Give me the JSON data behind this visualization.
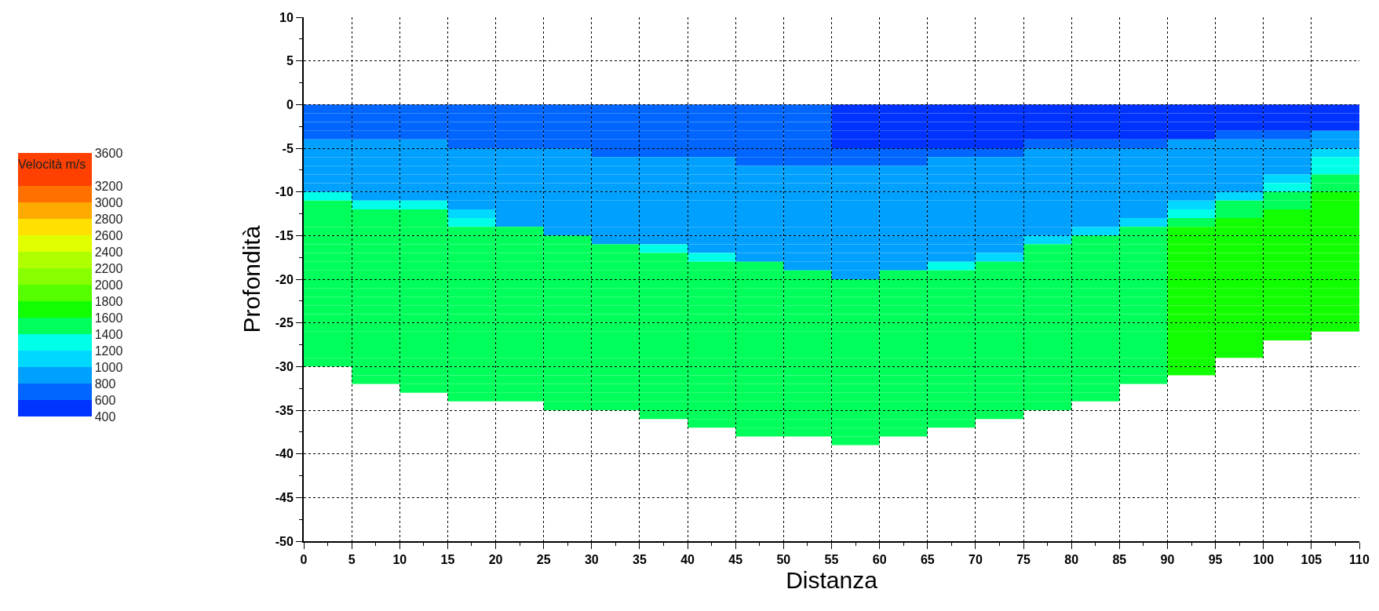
{
  "chart_data": {
    "type": "heatmap",
    "xlabel": "Distanza",
    "ylabel": "Profondità",
    "clabel": "Velocità m/s",
    "x": [
      2.5,
      7.5,
      12.5,
      17.5,
      22.5,
      27.5,
      32.5,
      37.5,
      42.5,
      47.5,
      52.5,
      57.5,
      62.5,
      67.5,
      72.5,
      77.5,
      82.5,
      87.5,
      92.5,
      97.5,
      102.5,
      107.5
    ],
    "y": [
      -0.5,
      -1.5,
      -2.5,
      -3.5,
      -4.5,
      -5.5,
      -6.5,
      -7.5,
      -8.5,
      -9.5,
      -10.5,
      -11.5,
      -12.5,
      -13.5,
      -14.5,
      -15.5,
      -16.5,
      -17.5,
      -18.5,
      -19.5,
      -20.5,
      -21.5,
      -22.5,
      -23.5,
      -24.5,
      -25.5,
      -26.5,
      -27.5,
      -28.5,
      -29.5,
      -30.5,
      -31.5,
      -32.5,
      -33.5,
      -34.5,
      -35.5,
      -36.5,
      -37.5,
      -38.5
    ],
    "cells": [
      [
        700,
        700,
        700,
        700,
        700,
        700,
        700,
        700,
        700,
        700,
        700,
        500,
        500,
        500,
        500,
        500,
        500,
        500,
        500,
        500,
        500,
        500
      ],
      [
        700,
        700,
        700,
        700,
        700,
        700,
        700,
        700,
        700,
        700,
        700,
        500,
        500,
        500,
        500,
        500,
        500,
        500,
        500,
        500,
        500,
        500
      ],
      [
        700,
        700,
        700,
        700,
        700,
        700,
        700,
        700,
        700,
        700,
        700,
        500,
        500,
        500,
        500,
        500,
        500,
        500,
        500,
        500,
        500,
        500
      ],
      [
        700,
        700,
        700,
        700,
        700,
        700,
        700,
        700,
        700,
        700,
        700,
        500,
        500,
        500,
        500,
        500,
        500,
        500,
        500,
        700,
        700,
        900
      ],
      [
        900,
        900,
        900,
        700,
        700,
        700,
        700,
        700,
        700,
        700,
        700,
        500,
        500,
        500,
        500,
        700,
        700,
        700,
        900,
        900,
        900,
        900
      ],
      [
        900,
        900,
        900,
        900,
        900,
        900,
        700,
        700,
        700,
        700,
        700,
        700,
        700,
        700,
        700,
        900,
        900,
        900,
        900,
        900,
        900,
        1100
      ],
      [
        900,
        900,
        900,
        900,
        900,
        900,
        900,
        900,
        900,
        700,
        700,
        700,
        700,
        900,
        900,
        900,
        900,
        900,
        900,
        900,
        900,
        1300
      ],
      [
        900,
        900,
        900,
        900,
        900,
        900,
        900,
        900,
        900,
        900,
        900,
        900,
        900,
        900,
        900,
        900,
        900,
        900,
        900,
        900,
        900,
        1300
      ],
      [
        900,
        900,
        900,
        900,
        900,
        900,
        900,
        900,
        900,
        900,
        900,
        900,
        900,
        900,
        900,
        900,
        900,
        900,
        900,
        900,
        1100,
        1500
      ],
      [
        900,
        900,
        900,
        900,
        900,
        900,
        900,
        900,
        900,
        900,
        900,
        900,
        900,
        900,
        900,
        900,
        900,
        900,
        900,
        900,
        1300,
        1500
      ],
      [
        1300,
        900,
        900,
        900,
        900,
        900,
        900,
        900,
        900,
        900,
        900,
        900,
        900,
        900,
        900,
        900,
        900,
        900,
        900,
        1100,
        1500,
        1700
      ],
      [
        1500,
        1300,
        1300,
        900,
        900,
        900,
        900,
        900,
        900,
        900,
        900,
        900,
        900,
        900,
        900,
        900,
        900,
        900,
        1100,
        1500,
        1500,
        1700
      ],
      [
        1500,
        1500,
        1500,
        1100,
        900,
        900,
        900,
        900,
        900,
        900,
        900,
        900,
        900,
        900,
        900,
        900,
        900,
        900,
        1300,
        1500,
        1700,
        1700
      ],
      [
        1500,
        1500,
        1500,
        1300,
        900,
        900,
        900,
        900,
        900,
        900,
        900,
        900,
        900,
        900,
        900,
        900,
        900,
        1100,
        1500,
        1700,
        1700,
        1700
      ],
      [
        1500,
        1500,
        1500,
        1500,
        1500,
        900,
        900,
        900,
        900,
        900,
        900,
        900,
        900,
        900,
        900,
        900,
        1100,
        1500,
        1700,
        1700,
        1700,
        1700
      ],
      [
        1500,
        1500,
        1500,
        1500,
        1500,
        1500,
        900,
        900,
        900,
        900,
        900,
        900,
        900,
        900,
        900,
        1100,
        1500,
        1500,
        1700,
        1700,
        1700,
        1700
      ],
      [
        1500,
        1500,
        1500,
        1500,
        1500,
        1500,
        1500,
        1300,
        900,
        900,
        900,
        900,
        900,
        900,
        900,
        1500,
        1500,
        1500,
        1700,
        1700,
        1700,
        1700
      ],
      [
        1500,
        1500,
        1500,
        1500,
        1500,
        1500,
        1500,
        1500,
        1300,
        900,
        900,
        900,
        900,
        900,
        1100,
        1500,
        1500,
        1500,
        1700,
        1700,
        1700,
        1700
      ],
      [
        1500,
        1500,
        1500,
        1500,
        1500,
        1500,
        1500,
        1500,
        1500,
        1500,
        900,
        900,
        900,
        1300,
        1500,
        1500,
        1500,
        1500,
        1700,
        1700,
        1700,
        1700
      ],
      [
        1500,
        1500,
        1500,
        1500,
        1500,
        1500,
        1500,
        1500,
        1500,
        1500,
        1500,
        900,
        1500,
        1500,
        1500,
        1500,
        1500,
        1500,
        1700,
        1700,
        1700,
        1700
      ],
      [
        1500,
        1500,
        1500,
        1500,
        1500,
        1500,
        1500,
        1500,
        1500,
        1500,
        1500,
        1500,
        1500,
        1500,
        1500,
        1500,
        1500,
        1500,
        1700,
        1700,
        1700,
        1700
      ],
      [
        1500,
        1500,
        1500,
        1500,
        1500,
        1500,
        1500,
        1500,
        1500,
        1500,
        1500,
        1500,
        1500,
        1500,
        1500,
        1500,
        1500,
        1500,
        1700,
        1700,
        1700,
        1700
      ],
      [
        1500,
        1500,
        1500,
        1500,
        1500,
        1500,
        1500,
        1500,
        1500,
        1500,
        1500,
        1500,
        1500,
        1500,
        1500,
        1500,
        1500,
        1500,
        1700,
        1700,
        1700,
        1700
      ],
      [
        1500,
        1500,
        1500,
        1500,
        1500,
        1500,
        1500,
        1500,
        1500,
        1500,
        1500,
        1500,
        1500,
        1500,
        1500,
        1500,
        1500,
        1500,
        1700,
        1700,
        1700,
        1700
      ],
      [
        1500,
        1500,
        1500,
        1500,
        1500,
        1500,
        1500,
        1500,
        1500,
        1500,
        1500,
        1500,
        1500,
        1500,
        1500,
        1500,
        1500,
        1500,
        1700,
        1700,
        1700,
        1700
      ],
      [
        1500,
        1500,
        1500,
        1500,
        1500,
        1500,
        1500,
        1500,
        1500,
        1500,
        1500,
        1500,
        1500,
        1500,
        1500,
        1500,
        1500,
        1500,
        1700,
        1700,
        1700,
        1700
      ],
      [
        1500,
        1500,
        1500,
        1500,
        1500,
        1500,
        1500,
        1500,
        1500,
        1500,
        1500,
        1500,
        1500,
        1500,
        1500,
        1500,
        1500,
        1500,
        1700,
        1700,
        1700,
        null
      ],
      [
        1500,
        1500,
        1500,
        1500,
        1500,
        1500,
        1500,
        1500,
        1500,
        1500,
        1500,
        1500,
        1500,
        1500,
        1500,
        1500,
        1500,
        1500,
        1700,
        1700,
        null,
        null
      ],
      [
        1500,
        1500,
        1500,
        1500,
        1500,
        1500,
        1500,
        1500,
        1500,
        1500,
        1500,
        1500,
        1500,
        1500,
        1500,
        1500,
        1500,
        1500,
        1700,
        1700,
        null,
        null
      ],
      [
        1500,
        1500,
        1500,
        1500,
        1500,
        1500,
        1500,
        1500,
        1500,
        1500,
        1500,
        1500,
        1500,
        1500,
        1500,
        1500,
        1500,
        1500,
        1700,
        null,
        null,
        null
      ],
      [
        null,
        1500,
        1500,
        1500,
        1500,
        1500,
        1500,
        1500,
        1500,
        1500,
        1500,
        1500,
        1500,
        1500,
        1500,
        1500,
        1500,
        1500,
        1700,
        null,
        null,
        null
      ],
      [
        null,
        1500,
        1500,
        1500,
        1500,
        1500,
        1500,
        1500,
        1500,
        1500,
        1500,
        1500,
        1500,
        1500,
        1500,
        1500,
        1500,
        1500,
        null,
        null,
        null,
        null
      ],
      [
        null,
        null,
        1500,
        1500,
        1500,
        1500,
        1500,
        1500,
        1500,
        1500,
        1500,
        1500,
        1500,
        1500,
        1500,
        1500,
        1500,
        null,
        null,
        null,
        null,
        null
      ],
      [
        null,
        null,
        null,
        1500,
        1500,
        1500,
        1500,
        1500,
        1500,
        1500,
        1500,
        1500,
        1500,
        1500,
        1500,
        1500,
        1500,
        null,
        null,
        null,
        null,
        null
      ],
      [
        null,
        null,
        null,
        null,
        null,
        1500,
        1500,
        1500,
        1500,
        1500,
        1500,
        1500,
        1500,
        1500,
        1500,
        1500,
        null,
        null,
        null,
        null,
        null,
        null
      ],
      [
        null,
        null,
        null,
        null,
        null,
        null,
        null,
        1500,
        1500,
        1500,
        1500,
        1500,
        1500,
        1500,
        1500,
        null,
        null,
        null,
        null,
        null,
        null,
        null
      ],
      [
        null,
        null,
        null,
        null,
        null,
        null,
        null,
        null,
        1500,
        1500,
        1500,
        1500,
        1500,
        1500,
        null,
        null,
        null,
        null,
        null,
        null,
        null,
        null
      ],
      [
        null,
        null,
        null,
        null,
        null,
        null,
        null,
        null,
        null,
        1500,
        1500,
        1500,
        1500,
        null,
        null,
        null,
        null,
        null,
        null,
        null,
        null,
        null
      ],
      [
        null,
        null,
        null,
        null,
        null,
        null,
        null,
        null,
        null,
        null,
        null,
        1500,
        null,
        null,
        null,
        null,
        null,
        null,
        null,
        null,
        null,
        null
      ]
    ],
    "clim": [
      400,
      3600
    ],
    "cticks": [
      400,
      600,
      800,
      1000,
      1200,
      1400,
      1600,
      1800,
      2000,
      2200,
      2400,
      2600,
      2800,
      3000,
      3200,
      3600
    ],
    "colors": [
      "#0033ff",
      "#0066ff",
      "#00a0ff",
      "#00d8ff",
      "#00ffe8",
      "#00ff5a",
      "#11ff00",
      "#55ff00",
      "#88ff00",
      "#b0ff00",
      "#e0ff00",
      "#ffe000",
      "#ffaa00",
      "#ff7000",
      "#ff4000"
    ],
    "xlim": [
      0,
      110
    ],
    "xticks": [
      0,
      5,
      10,
      15,
      20,
      25,
      30,
      35,
      40,
      45,
      50,
      55,
      60,
      65,
      70,
      75,
      80,
      85,
      90,
      95,
      100,
      105,
      110
    ],
    "ylim": [
      -50,
      10
    ],
    "yticks": [
      -50,
      -45,
      -40,
      -35,
      -30,
      -25,
      -20,
      -15,
      -10,
      -5,
      0,
      5,
      10
    ],
    "grid": true
  }
}
